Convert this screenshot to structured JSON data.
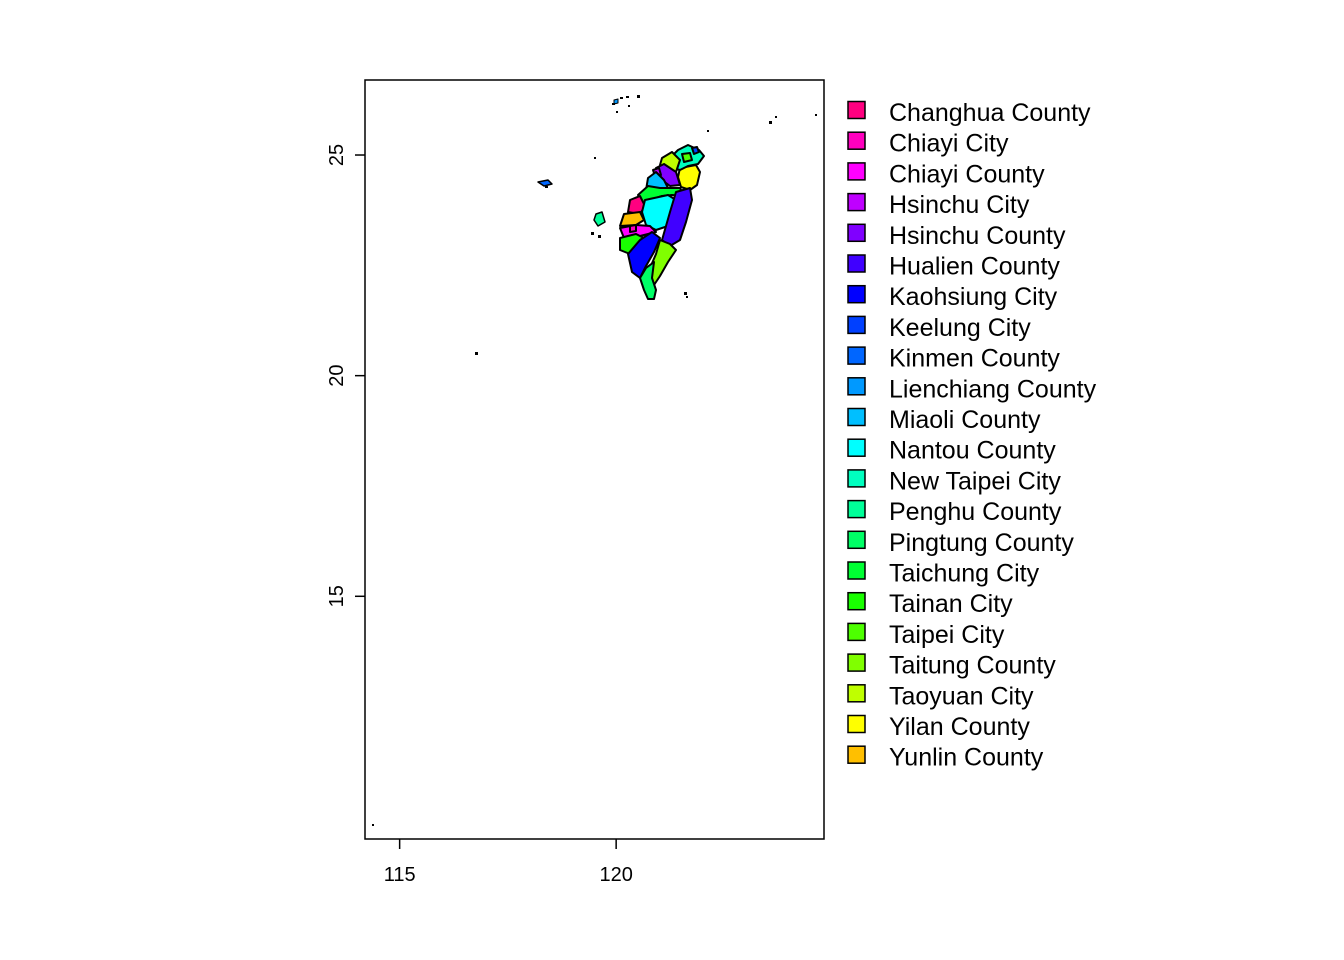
{
  "map": {
    "x_ticks": [
      {
        "value": 115,
        "label": "115"
      },
      {
        "value": 120,
        "label": "120"
      }
    ],
    "y_ticks": [
      {
        "value": 15,
        "label": "15"
      },
      {
        "value": 20,
        "label": "20"
      },
      {
        "value": 25,
        "label": "25"
      }
    ],
    "xlim": [
      114.2,
      124.8
    ],
    "ylim": [
      9.5,
      26.7
    ]
  },
  "legend": {
    "placement": "right",
    "items": [
      {
        "label": "Changhua County",
        "color": "#FF0080"
      },
      {
        "label": "Chiayi City",
        "color": "#FF00BF"
      },
      {
        "label": "Chiayi County",
        "color": "#FF00FF"
      },
      {
        "label": "Hsinchu City",
        "color": "#BF00FF"
      },
      {
        "label": "Hsinchu County",
        "color": "#8000FF"
      },
      {
        "label": "Hualien County",
        "color": "#4000FF"
      },
      {
        "label": "Kaohsiung City",
        "color": "#0000FF"
      },
      {
        "label": "Keelung City",
        "color": "#0040FF"
      },
      {
        "label": "Kinmen County",
        "color": "#0066FF"
      },
      {
        "label": "Lienchiang County",
        "color": "#0099FF"
      },
      {
        "label": "Miaoli County",
        "color": "#00BFFF"
      },
      {
        "label": "Nantou County",
        "color": "#00FFFF"
      },
      {
        "label": "New Taipei City",
        "color": "#00FFBF"
      },
      {
        "label": "Penghu County",
        "color": "#00FF99"
      },
      {
        "label": "Pingtung County",
        "color": "#00FF66"
      },
      {
        "label": "Taichung City",
        "color": "#00FF33"
      },
      {
        "label": "Tainan City",
        "color": "#19FF00"
      },
      {
        "label": "Taipei City",
        "color": "#4DFF00"
      },
      {
        "label": "Taitung County",
        "color": "#80FF00"
      },
      {
        "label": "Taoyuan City",
        "color": "#BFFF00"
      },
      {
        "label": "Yilan County",
        "color": "#FFFF00"
      },
      {
        "label": "Yunlin County",
        "color": "#FFBF00"
      }
    ]
  }
}
